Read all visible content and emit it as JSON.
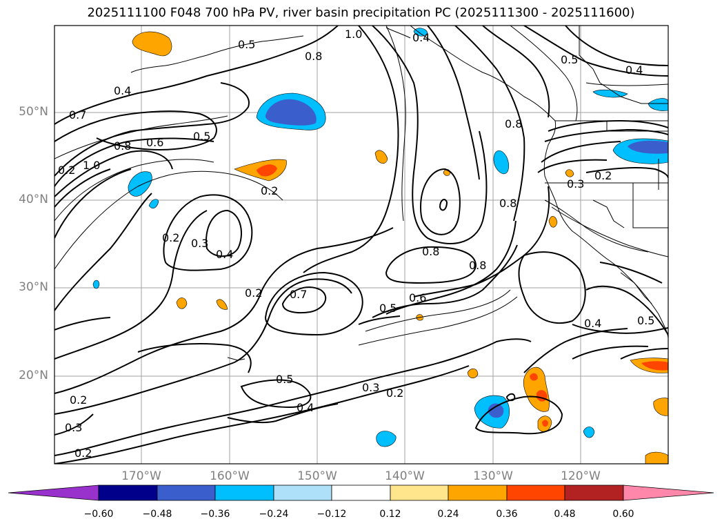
{
  "title": "2025111100 F048 700 hPa PV, river basin precipitation PC (2025111300 - 2025111600)",
  "latitude_labels": [
    "50°N",
    "40°N",
    "30°N",
    "20°N"
  ],
  "longitude_labels": [
    "170°W",
    "160°W",
    "150°W",
    "140°W",
    "130°W",
    "120°W"
  ],
  "contour_labels": [
    "0.4",
    "0.7",
    "1.0",
    "0.8",
    "0.6",
    "0.5",
    "0.2",
    "0.2",
    "0.3",
    "0.4",
    "0.2",
    "0.5",
    "0.8",
    "0.7",
    "0.6",
    "0.5",
    "0.5",
    "0.3",
    "0.2",
    "0.4",
    "0.2",
    "0.3",
    "0.2",
    "1.0",
    "0.8",
    "0.4",
    "0.5",
    "0.4",
    "0.8",
    "0.8",
    "0.3",
    "0.2",
    "0.4",
    "0.5",
    "0.2",
    "0.8"
  ],
  "colorbar": {
    "tick_labels": [
      "−0.60",
      "−0.48",
      "−0.36",
      "−0.24",
      "−0.12",
      "0.12",
      "0.24",
      "0.36",
      "0.48",
      "0.60"
    ],
    "colors": [
      "#9932cc",
      "#00008b",
      "#3a5fcd",
      "#00bfff",
      "#afe0fa",
      "#ffffff",
      "#ffe68c",
      "#ffa500",
      "#ff4500",
      "#b22222",
      "#ff88aa"
    ]
  },
  "colors": {
    "neg_light": "#00bfff",
    "neg_mid": "#3a5fcd",
    "pos_light": "#ffa500",
    "pos_mid": "#ff4500",
    "grid": "#a0a0a0"
  }
}
